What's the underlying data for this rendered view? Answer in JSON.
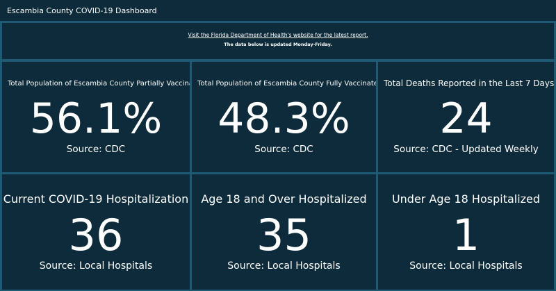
{
  "header": {
    "title": "Escambia County COVID-19 Dashboard"
  },
  "notice": {
    "link_text": "Visit the Florida Department of Health's website for the latest report.",
    "subtext": "The data below is updated Monday-Friday."
  },
  "cards": [
    {
      "title": "Total Population of Escambia County Partially Vaccinated",
      "value": "56.1%",
      "source": "Source: CDC"
    },
    {
      "title": "Total Population of Escambia County Fully Vaccinated",
      "value": "48.3%",
      "source": "Source: CDC"
    },
    {
      "title": "Total Deaths Reported in the Last 7 Days",
      "value": "24",
      "source": "Source: CDC - Updated Weekly"
    },
    {
      "title": "Current COVID-19 Hospitalization",
      "value": "36",
      "source": "Source: Local Hospitals"
    },
    {
      "title": "Age 18 and Over Hospitalized",
      "value": "35",
      "source": "Source: Local Hospitals"
    },
    {
      "title": "Under Age 18 Hospitalized",
      "value": "1",
      "source": "Source: Local Hospitals"
    }
  ],
  "colors": {
    "background": "#1e5a73",
    "panel": "#0d2b3a",
    "text": "#ffffff"
  }
}
